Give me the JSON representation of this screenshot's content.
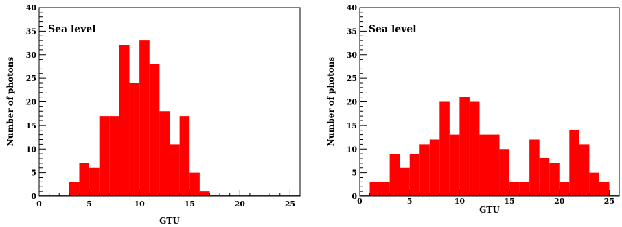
{
  "chart_data": [
    {
      "type": "bar",
      "annotation": "Sea level",
      "xlabel": "GTU",
      "ylabel": "Number of photons",
      "xlim": [
        0,
        26
      ],
      "ylim": [
        0,
        40
      ],
      "bin_edges": [
        0,
        1,
        2,
        3,
        4,
        5,
        6,
        7,
        8,
        9,
        10,
        11,
        12,
        13,
        14,
        15,
        16,
        17,
        18,
        19,
        20,
        21,
        22,
        23,
        24,
        25,
        26
      ],
      "values": [
        0,
        0,
        0,
        3,
        7,
        6,
        17,
        17,
        32,
        24,
        33,
        28,
        18,
        11,
        17,
        5,
        1,
        0,
        0,
        0,
        0,
        0,
        0,
        0,
        0,
        0
      ],
      "x_ticks": [
        "0",
        "5",
        "10",
        "15",
        "20",
        "25"
      ],
      "y_ticks": [
        "0",
        "5",
        "10",
        "15",
        "20",
        "25",
        "30",
        "35",
        "40"
      ],
      "bar_color": "#ff0000",
      "grid": false
    },
    {
      "type": "bar",
      "annotation": "Sea level",
      "xlabel": "GTU",
      "ylabel": "Number of photons",
      "xlim": [
        0,
        26
      ],
      "ylim": [
        0,
        40
      ],
      "bin_edges": [
        0,
        1,
        2,
        3,
        4,
        5,
        6,
        7,
        8,
        9,
        10,
        11,
        12,
        13,
        14,
        15,
        16,
        17,
        18,
        19,
        20,
        21,
        22,
        23,
        24,
        25,
        26
      ],
      "values": [
        0,
        3,
        3,
        9,
        6,
        9,
        11,
        12,
        20,
        13,
        21,
        20,
        13,
        13,
        10,
        3,
        3,
        12,
        8,
        7,
        3,
        14,
        11,
        5,
        3,
        0
      ],
      "x_ticks": [
        "0",
        "5",
        "10",
        "15",
        "20",
        "25"
      ],
      "y_ticks": [
        "0",
        "5",
        "10",
        "15",
        "20",
        "25",
        "30",
        "35",
        "40"
      ],
      "bar_color": "#ff0000",
      "grid": false
    }
  ]
}
